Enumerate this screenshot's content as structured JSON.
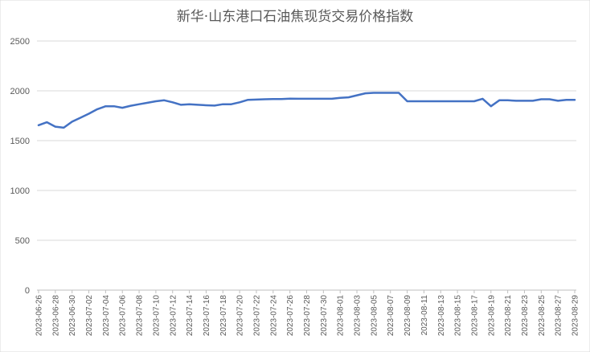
{
  "chart_data": {
    "type": "line",
    "title": "新华·山东港口石油焦现货交易价格指数",
    "xlabel": "",
    "ylabel": "",
    "ylim": [
      0,
      2500
    ],
    "yticks": [
      0,
      500,
      1000,
      1500,
      2000,
      2500
    ],
    "grid": true,
    "legend": "none",
    "line_color": "#4472c4",
    "x_tick_labels": [
      "2023-06-26",
      "2023-06-28",
      "2023-06-30",
      "2023-07-02",
      "2023-07-04",
      "2023-07-06",
      "2023-07-08",
      "2023-07-10",
      "2023-07-12",
      "2023-07-14",
      "2023-07-16",
      "2023-07-18",
      "2023-07-20",
      "2023-07-22",
      "2023-07-24",
      "2023-07-26",
      "2023-07-28",
      "2023-07-30",
      "2023-08-01",
      "2023-08-03",
      "2023-08-05",
      "2023-08-07",
      "2023-08-09",
      "2023-08-11",
      "2023-08-13",
      "2023-08-15",
      "2023-08-17",
      "2023-08-19",
      "2023-08-21",
      "2023-08-23",
      "2023-08-25",
      "2023-08-27",
      "2023-08-29"
    ],
    "x": [
      "2023-06-26",
      "2023-06-27",
      "2023-06-28",
      "2023-06-29",
      "2023-06-30",
      "2023-07-01",
      "2023-07-02",
      "2023-07-03",
      "2023-07-04",
      "2023-07-05",
      "2023-07-06",
      "2023-07-07",
      "2023-07-08",
      "2023-07-09",
      "2023-07-10",
      "2023-07-11",
      "2023-07-12",
      "2023-07-13",
      "2023-07-14",
      "2023-07-15",
      "2023-07-16",
      "2023-07-17",
      "2023-07-18",
      "2023-07-19",
      "2023-07-20",
      "2023-07-21",
      "2023-07-22",
      "2023-07-23",
      "2023-07-24",
      "2023-07-25",
      "2023-07-26",
      "2023-07-27",
      "2023-07-28",
      "2023-07-29",
      "2023-07-30",
      "2023-07-31",
      "2023-08-01",
      "2023-08-02",
      "2023-08-03",
      "2023-08-04",
      "2023-08-05",
      "2023-08-06",
      "2023-08-07",
      "2023-08-08",
      "2023-08-09",
      "2023-08-10",
      "2023-08-11",
      "2023-08-12",
      "2023-08-13",
      "2023-08-14",
      "2023-08-15",
      "2023-08-16",
      "2023-08-17",
      "2023-08-18",
      "2023-08-19",
      "2023-08-20",
      "2023-08-21",
      "2023-08-22",
      "2023-08-23",
      "2023-08-24",
      "2023-08-25",
      "2023-08-26",
      "2023-08-27",
      "2023-08-28",
      "2023-08-29"
    ],
    "series": [
      {
        "values": [
          1655,
          1685,
          1640,
          1630,
          1690,
          1730,
          1770,
          1815,
          1845,
          1845,
          1830,
          1850,
          1865,
          1880,
          1895,
          1905,
          1885,
          1860,
          1865,
          1860,
          1855,
          1852,
          1865,
          1865,
          1885,
          1910,
          1912,
          1915,
          1918,
          1918,
          1922,
          1920,
          1920,
          1920,
          1920,
          1920,
          1930,
          1935,
          1955,
          1975,
          1980,
          1980,
          1980,
          1980,
          1895,
          1895,
          1895,
          1895,
          1895,
          1895,
          1895,
          1895,
          1895,
          1920,
          1845,
          1905,
          1905,
          1900,
          1900,
          1900,
          1915,
          1915,
          1900,
          1910,
          1910
        ]
      }
    ]
  }
}
